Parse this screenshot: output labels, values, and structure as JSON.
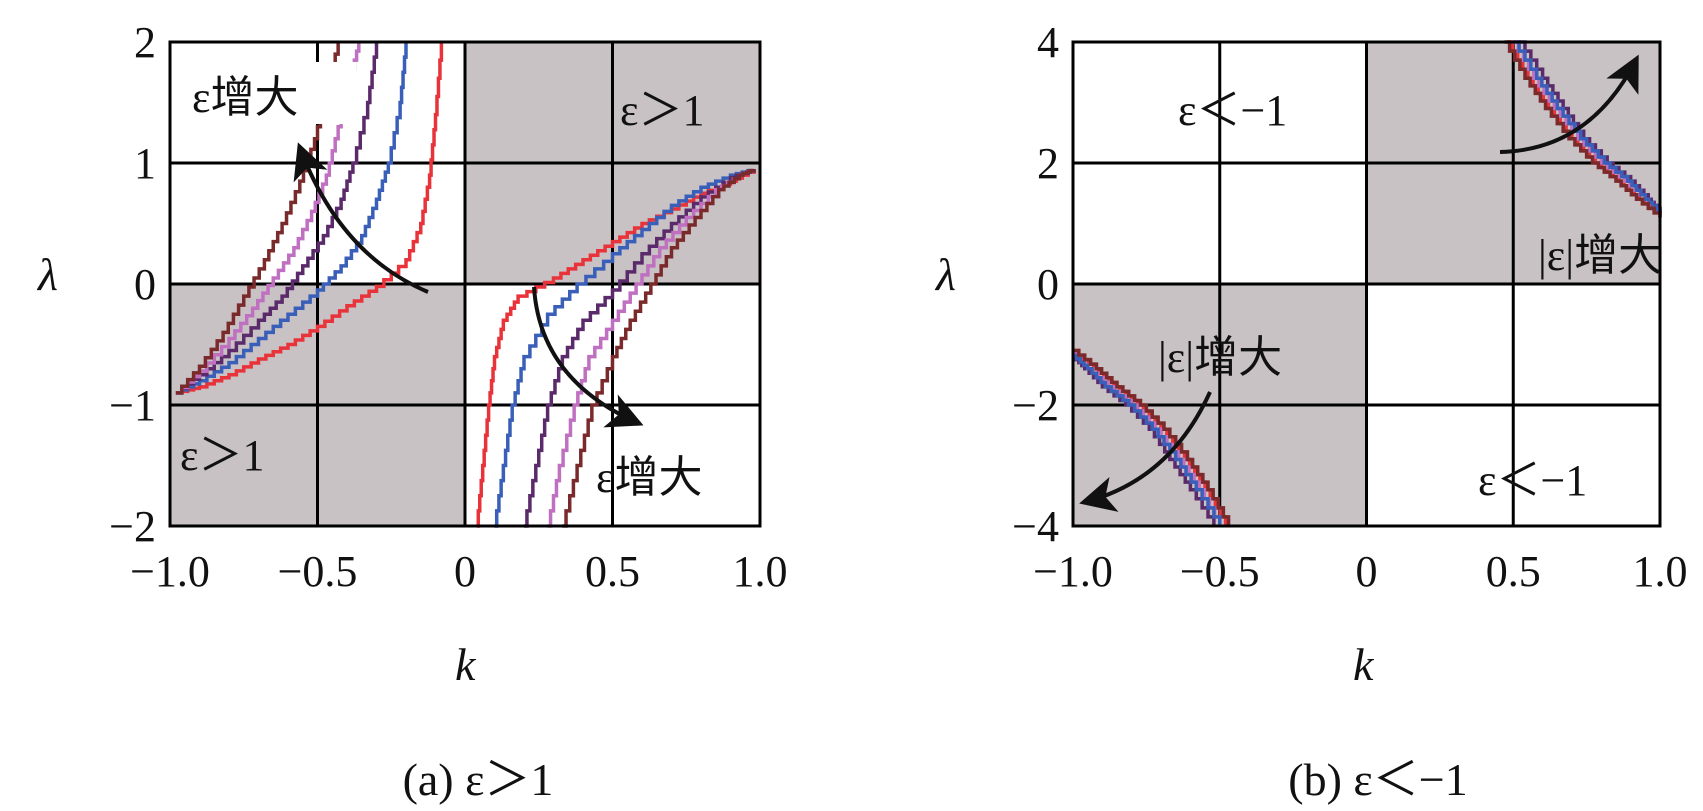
{
  "chart_data": [
    {
      "type": "line",
      "panel": "a",
      "caption": "(a) ε＞1",
      "xlabel": "k",
      "ylabel": "λ",
      "xlim": [
        -1.0,
        1.0
      ],
      "ylim": [
        -2,
        2
      ],
      "x_ticks": [
        "−1.0",
        "−0.5",
        "0",
        "0.5",
        "1.0"
      ],
      "y_ticks": [
        "2",
        "1",
        "0",
        "−1",
        "−2"
      ],
      "grid": true,
      "shaded_regions": [
        {
          "x": [
            0,
            1
          ],
          "y": [
            0,
            2
          ],
          "label": "ε＞1"
        },
        {
          "x": [
            -1,
            0
          ],
          "y": [
            -2,
            0
          ],
          "label": "ε＞1"
        }
      ],
      "annotations": [
        "ε增大",
        "ε增大"
      ],
      "series": [
        {
          "color": "#e8333a",
          "values": [
            [
              -0.98,
              -0.9
            ],
            [
              -0.9,
              -0.85
            ],
            [
              -0.8,
              -0.75
            ],
            [
              -0.7,
              -0.62
            ],
            [
              -0.6,
              -0.5
            ],
            [
              -0.5,
              -0.35
            ],
            [
              -0.4,
              -0.18
            ],
            [
              -0.3,
              -0.02
            ],
            [
              -0.2,
              0.2
            ],
            [
              -0.15,
              0.5
            ],
            [
              -0.12,
              0.9
            ],
            [
              -0.1,
              1.4
            ],
            [
              -0.08,
              2.0
            ]
          ]
        },
        {
          "color": "#3a5fb8",
          "values": [
            [
              -0.98,
              -0.9
            ],
            [
              -0.9,
              -0.8
            ],
            [
              -0.8,
              -0.65
            ],
            [
              -0.7,
              -0.45
            ],
            [
              -0.6,
              -0.25
            ],
            [
              -0.5,
              -0.05
            ],
            [
              -0.42,
              0.15
            ],
            [
              -0.35,
              0.4
            ],
            [
              -0.3,
              0.7
            ],
            [
              -0.26,
              1.0
            ],
            [
              -0.22,
              1.5
            ],
            [
              -0.2,
              2.0
            ]
          ]
        },
        {
          "color": "#5a2a6a",
          "values": [
            [
              -0.98,
              -0.9
            ],
            [
              -0.9,
              -0.75
            ],
            [
              -0.8,
              -0.55
            ],
            [
              -0.7,
              -0.3
            ],
            [
              -0.62,
              -0.1
            ],
            [
              -0.55,
              0.15
            ],
            [
              -0.48,
              0.4
            ],
            [
              -0.42,
              0.7
            ],
            [
              -0.38,
              1.0
            ],
            [
              -0.33,
              1.5
            ],
            [
              -0.3,
              2.0
            ]
          ]
        },
        {
          "color": "#c070c0",
          "values": [
            [
              -0.98,
              -0.9
            ],
            [
              -0.9,
              -0.72
            ],
            [
              -0.8,
              -0.45
            ],
            [
              -0.72,
              -0.2
            ],
            [
              -0.65,
              0.05
            ],
            [
              -0.58,
              0.3
            ],
            [
              -0.52,
              0.6
            ],
            [
              -0.47,
              0.9
            ],
            [
              -0.43,
              1.3
            ],
            [
              -0.39,
              1.7
            ],
            [
              -0.36,
              2.0
            ]
          ]
        },
        {
          "color": "#7a2a2a",
          "values": [
            [
              -0.98,
              -0.9
            ],
            [
              -0.9,
              -0.68
            ],
            [
              -0.82,
              -0.4
            ],
            [
              -0.75,
              -0.1
            ],
            [
              -0.68,
              0.2
            ],
            [
              -0.62,
              0.5
            ],
            [
              -0.56,
              0.85
            ],
            [
              -0.51,
              1.2
            ],
            [
              -0.47,
              1.6
            ],
            [
              -0.43,
              2.0
            ]
          ]
        },
        {
          "color": "#e8333a",
          "values": [
            [
              0.04,
              -2.0
            ],
            [
              0.06,
              -1.5
            ],
            [
              0.08,
              -1.0
            ],
            [
              0.1,
              -0.6
            ],
            [
              0.13,
              -0.3
            ],
            [
              0.18,
              -0.1
            ],
            [
              0.3,
              0.05
            ],
            [
              0.4,
              0.2
            ],
            [
              0.5,
              0.35
            ],
            [
              0.6,
              0.5
            ],
            [
              0.7,
              0.62
            ],
            [
              0.8,
              0.75
            ],
            [
              0.9,
              0.85
            ],
            [
              0.98,
              0.95
            ]
          ]
        },
        {
          "color": "#3a5fb8",
          "values": [
            [
              0.1,
              -2.0
            ],
            [
              0.13,
              -1.5
            ],
            [
              0.16,
              -1.0
            ],
            [
              0.2,
              -0.6
            ],
            [
              0.28,
              -0.25
            ],
            [
              0.38,
              0.0
            ],
            [
              0.5,
              0.25
            ],
            [
              0.6,
              0.45
            ],
            [
              0.7,
              0.65
            ],
            [
              0.8,
              0.8
            ],
            [
              0.9,
              0.9
            ],
            [
              0.98,
              0.95
            ]
          ]
        },
        {
          "color": "#5a2a6a",
          "values": [
            [
              0.2,
              -2.0
            ],
            [
              0.24,
              -1.5
            ],
            [
              0.28,
              -1.0
            ],
            [
              0.33,
              -0.6
            ],
            [
              0.4,
              -0.3
            ],
            [
              0.5,
              -0.05
            ],
            [
              0.6,
              0.25
            ],
            [
              0.7,
              0.5
            ],
            [
              0.8,
              0.72
            ],
            [
              0.9,
              0.88
            ],
            [
              0.98,
              0.95
            ]
          ]
        },
        {
          "color": "#c070c0",
          "values": [
            [
              0.28,
              -2.0
            ],
            [
              0.32,
              -1.5
            ],
            [
              0.37,
              -1.0
            ],
            [
              0.42,
              -0.6
            ],
            [
              0.5,
              -0.3
            ],
            [
              0.58,
              0.0
            ],
            [
              0.66,
              0.3
            ],
            [
              0.75,
              0.55
            ],
            [
              0.85,
              0.78
            ],
            [
              0.93,
              0.9
            ],
            [
              0.98,
              0.95
            ]
          ]
        },
        {
          "color": "#7a2a2a",
          "values": [
            [
              0.33,
              -2.0
            ],
            [
              0.38,
              -1.5
            ],
            [
              0.43,
              -1.0
            ],
            [
              0.5,
              -0.6
            ],
            [
              0.56,
              -0.3
            ],
            [
              0.63,
              0.0
            ],
            [
              0.7,
              0.3
            ],
            [
              0.78,
              0.55
            ],
            [
              0.86,
              0.78
            ],
            [
              0.93,
              0.9
            ],
            [
              0.98,
              0.95
            ]
          ]
        }
      ]
    },
    {
      "type": "line",
      "panel": "b",
      "caption": "(b) ε＜−1",
      "xlabel": "k",
      "ylabel": "λ",
      "xlim": [
        -1.0,
        1.0
      ],
      "ylim": [
        -4,
        4
      ],
      "x_ticks": [
        "−1.0",
        "−0.5",
        "0",
        "0.5",
        "1.0"
      ],
      "y_ticks": [
        "4",
        "2",
        "0",
        "−2",
        "−4"
      ],
      "grid": true,
      "shaded_regions": [
        {
          "x": [
            0,
            1
          ],
          "y": [
            0,
            4
          ],
          "label": ""
        },
        {
          "x": [
            -1,
            0
          ],
          "y": [
            -4,
            0
          ],
          "label": ""
        }
      ],
      "region_labels": [
        "ε＜−1",
        "ε＜−1"
      ],
      "annotations": [
        "|ε|增大",
        "|ε|增大"
      ],
      "series": [
        {
          "color": "#e8333a",
          "values": [
            [
              0.48,
              4.0
            ],
            [
              0.55,
              3.4
            ],
            [
              0.62,
              2.9
            ],
            [
              0.7,
              2.4
            ],
            [
              0.78,
              2.0
            ],
            [
              0.86,
              1.7
            ],
            [
              0.93,
              1.4
            ],
            [
              1.0,
              1.1
            ]
          ]
        },
        {
          "color": "#c070c0",
          "values": [
            [
              0.5,
              4.0
            ],
            [
              0.57,
              3.4
            ],
            [
              0.64,
              2.9
            ],
            [
              0.72,
              2.4
            ],
            [
              0.8,
              2.0
            ],
            [
              0.88,
              1.7
            ],
            [
              0.95,
              1.4
            ],
            [
              1.0,
              1.15
            ]
          ]
        },
        {
          "color": "#5a2a6a",
          "values": [
            [
              0.52,
              4.0
            ],
            [
              0.6,
              3.4
            ],
            [
              0.67,
              2.9
            ],
            [
              0.74,
              2.4
            ],
            [
              0.82,
              2.0
            ],
            [
              0.9,
              1.7
            ],
            [
              0.96,
              1.4
            ],
            [
              1.0,
              1.2
            ]
          ]
        },
        {
          "color": "#3a5fb8",
          "values": [
            [
              0.5,
              4.0
            ],
            [
              0.58,
              3.4
            ],
            [
              0.65,
              2.9
            ],
            [
              0.73,
              2.4
            ],
            [
              0.81,
              2.0
            ],
            [
              0.89,
              1.7
            ],
            [
              0.95,
              1.4
            ],
            [
              1.0,
              1.18
            ]
          ]
        },
        {
          "color": "#7a2a2a",
          "values": [
            [
              0.47,
              4.0
            ],
            [
              0.54,
              3.4
            ],
            [
              0.61,
              2.9
            ],
            [
              0.69,
              2.4
            ],
            [
              0.77,
              2.0
            ],
            [
              0.85,
              1.7
            ],
            [
              0.92,
              1.4
            ],
            [
              1.0,
              1.1
            ]
          ]
        },
        {
          "color": "#e8333a",
          "values": [
            [
              -1.0,
              -1.1
            ],
            [
              -0.93,
              -1.4
            ],
            [
              -0.86,
              -1.7
            ],
            [
              -0.78,
              -2.0
            ],
            [
              -0.7,
              -2.4
            ],
            [
              -0.62,
              -2.9
            ],
            [
              -0.55,
              -3.4
            ],
            [
              -0.48,
              -4.0
            ]
          ]
        },
        {
          "color": "#c070c0",
          "values": [
            [
              -1.0,
              -1.15
            ],
            [
              -0.95,
              -1.4
            ],
            [
              -0.88,
              -1.7
            ],
            [
              -0.8,
              -2.0
            ],
            [
              -0.72,
              -2.4
            ],
            [
              -0.64,
              -2.9
            ],
            [
              -0.57,
              -3.4
            ],
            [
              -0.5,
              -4.0
            ]
          ]
        },
        {
          "color": "#5a2a6a",
          "values": [
            [
              -1.0,
              -1.2
            ],
            [
              -0.96,
              -1.4
            ],
            [
              -0.9,
              -1.7
            ],
            [
              -0.82,
              -2.0
            ],
            [
              -0.74,
              -2.4
            ],
            [
              -0.67,
              -2.9
            ],
            [
              -0.6,
              -3.4
            ],
            [
              -0.52,
              -4.0
            ]
          ]
        },
        {
          "color": "#3a5fb8",
          "values": [
            [
              -1.0,
              -1.18
            ],
            [
              -0.95,
              -1.4
            ],
            [
              -0.89,
              -1.7
            ],
            [
              -0.81,
              -2.0
            ],
            [
              -0.73,
              -2.4
            ],
            [
              -0.65,
              -2.9
            ],
            [
              -0.58,
              -3.4
            ],
            [
              -0.5,
              -4.0
            ]
          ]
        },
        {
          "color": "#7a2a2a",
          "values": [
            [
              -1.0,
              -1.1
            ],
            [
              -0.92,
              -1.4
            ],
            [
              -0.85,
              -1.7
            ],
            [
              -0.77,
              -2.0
            ],
            [
              -0.69,
              -2.4
            ],
            [
              -0.61,
              -2.9
            ],
            [
              -0.54,
              -3.4
            ],
            [
              -0.47,
              -4.0
            ]
          ]
        }
      ]
    }
  ]
}
